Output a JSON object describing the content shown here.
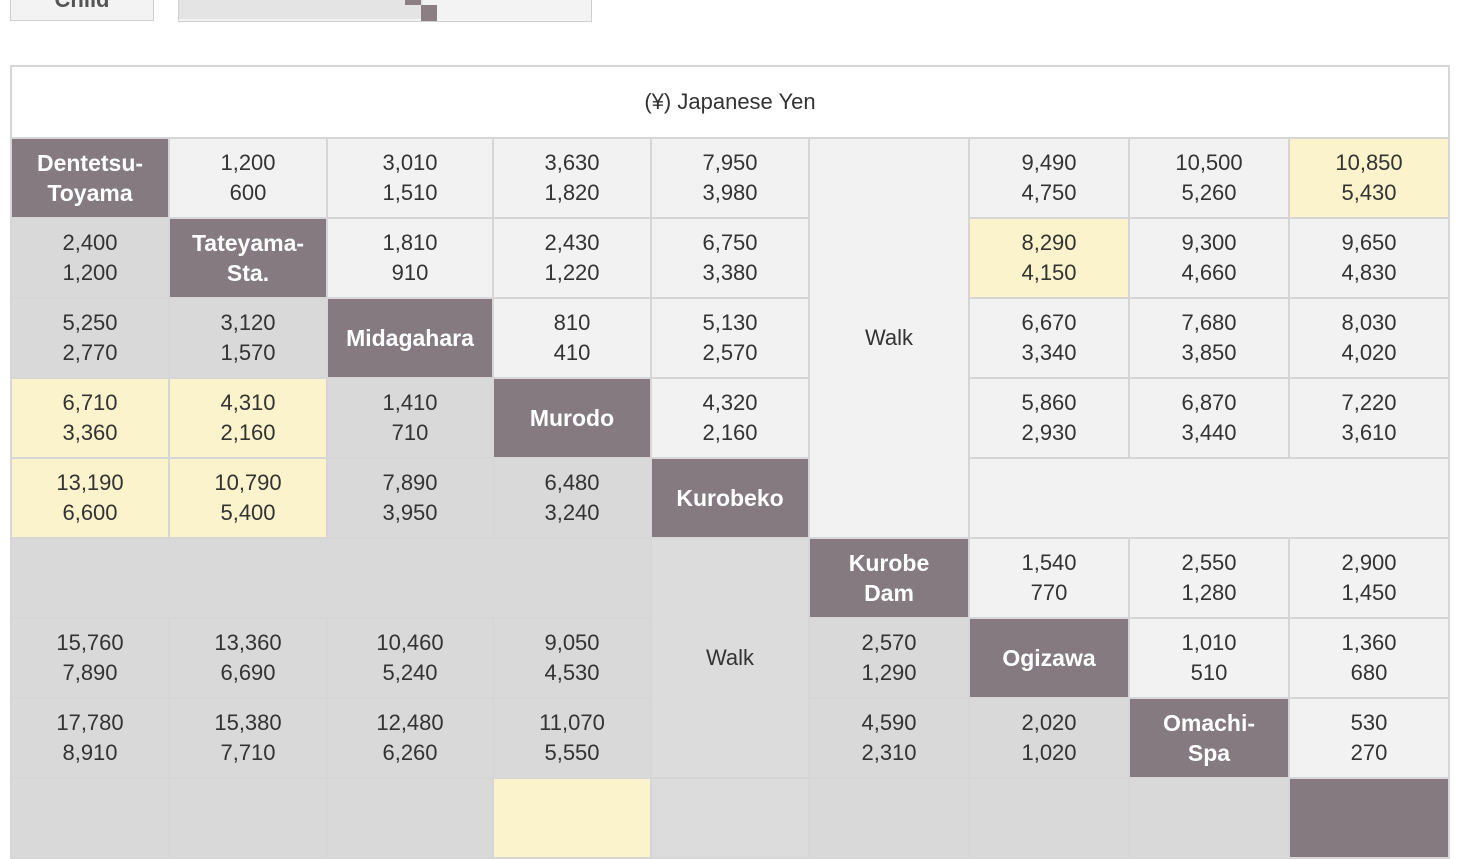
{
  "top_controls": {
    "button_label": "Child"
  },
  "table": {
    "caption": "(¥) Japanese Yen",
    "walk_label": "Walk",
    "stations": {
      "dentetsu_toyama": [
        "Dentetsu-",
        "Toyama"
      ],
      "tateyama_sta": [
        "Tateyama-",
        "Sta."
      ],
      "midagahara": [
        "Midagahara"
      ],
      "murodo": [
        "Murodo"
      ],
      "kurobeko": [
        "Kurobeko"
      ],
      "kurobe_dam": [
        "Kurobe",
        "Dam"
      ],
      "ogizawa": [
        "Ogizawa"
      ],
      "omachi_spa": [
        "Omachi-",
        "Spa"
      ]
    },
    "rows": [
      [
        null,
        [
          "1,200",
          "600"
        ],
        [
          "3,010",
          "1,510"
        ],
        [
          "3,630",
          "1,820"
        ],
        [
          "7,950",
          "3,980"
        ],
        null,
        [
          "9,490",
          "4,750"
        ],
        [
          "10,500",
          "5,260"
        ],
        [
          "10,850",
          "5,430"
        ]
      ],
      [
        [
          "2,400",
          "1,200"
        ],
        null,
        [
          "1,810",
          "910"
        ],
        [
          "2,430",
          "1,220"
        ],
        [
          "6,750",
          "3,380"
        ],
        null,
        [
          "8,290",
          "4,150"
        ],
        [
          "9,300",
          "4,660"
        ],
        [
          "9,650",
          "4,830"
        ]
      ],
      [
        [
          "5,250",
          "2,770"
        ],
        [
          "3,120",
          "1,570"
        ],
        null,
        [
          "810",
          "410"
        ],
        [
          "5,130",
          "2,570"
        ],
        null,
        [
          "6,670",
          "3,340"
        ],
        [
          "7,680",
          "3,850"
        ],
        [
          "8,030",
          "4,020"
        ]
      ],
      [
        [
          "6,710",
          "3,360"
        ],
        [
          "4,310",
          "2,160"
        ],
        [
          "1,410",
          "710"
        ],
        null,
        [
          "4,320",
          "2,160"
        ],
        null,
        [
          "5,860",
          "2,930"
        ],
        [
          "6,870",
          "3,440"
        ],
        [
          "7,220",
          "3,610"
        ]
      ],
      [
        [
          "13,190",
          "6,600"
        ],
        [
          "10,790",
          "5,400"
        ],
        [
          "7,890",
          "3,950"
        ],
        [
          "6,480",
          "3,240"
        ],
        null,
        null,
        null,
        null,
        null
      ],
      [
        null,
        null,
        null,
        null,
        null,
        null,
        [
          "1,540",
          "770"
        ],
        [
          "2,550",
          "1,280"
        ],
        [
          "2,900",
          "1,450"
        ]
      ],
      [
        [
          "15,760",
          "7,890"
        ],
        [
          "13,360",
          "6,690"
        ],
        [
          "10,460",
          "5,240"
        ],
        [
          "9,050",
          "4,530"
        ],
        null,
        [
          "2,570",
          "1,290"
        ],
        null,
        [
          "1,010",
          "510"
        ],
        [
          "1,360",
          "680"
        ]
      ],
      [
        [
          "17,780",
          "8,910"
        ],
        [
          "15,380",
          "7,710"
        ],
        [
          "12,480",
          "6,260"
        ],
        [
          "11,070",
          "5,550"
        ],
        null,
        [
          "4,590",
          "2,310"
        ],
        [
          "2,020",
          "1,020"
        ],
        null,
        [
          "530",
          "270"
        ]
      ]
    ]
  },
  "colors": {
    "station_header": "#857a7f",
    "highlight_yellow": "#faf3cc",
    "cell_gray": "#d9d9d9",
    "cell_light": "#f2f2f2"
  }
}
